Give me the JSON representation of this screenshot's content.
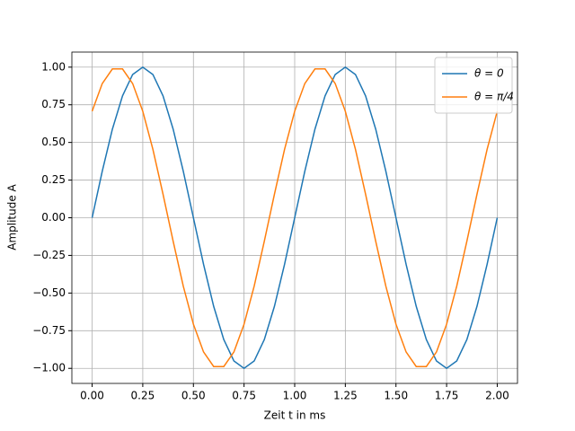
{
  "chart_data": {
    "type": "line",
    "xlabel": "Zeit t in ms",
    "ylabel": "Amplitude A",
    "x": [
      0,
      0.05,
      0.1,
      0.15,
      0.2,
      0.25,
      0.3,
      0.35,
      0.4,
      0.45,
      0.5,
      0.55,
      0.6,
      0.65,
      0.7,
      0.75,
      0.8,
      0.85,
      0.9,
      0.95,
      1.0,
      1.05,
      1.1,
      1.15,
      1.2,
      1.25,
      1.3,
      1.35,
      1.4,
      1.45,
      1.5,
      1.55,
      1.6,
      1.65,
      1.7,
      1.75,
      1.8,
      1.85,
      1.9,
      1.95,
      2.0
    ],
    "series": [
      {
        "name": "θ = 0",
        "color": "#1f77b4",
        "values": [
          0,
          0.309,
          0.588,
          0.809,
          0.951,
          1,
          0.951,
          0.809,
          0.588,
          0.309,
          0,
          -0.309,
          -0.588,
          -0.809,
          -0.951,
          -1,
          -0.951,
          -0.809,
          -0.588,
          -0.309,
          0,
          0.309,
          0.588,
          0.809,
          0.951,
          1,
          0.951,
          0.809,
          0.588,
          0.309,
          0,
          -0.309,
          -0.588,
          -0.809,
          -0.951,
          -1,
          -0.951,
          -0.809,
          -0.588,
          -0.309,
          0
        ]
      },
      {
        "name": "θ = π/4",
        "color": "#ff7f0e",
        "values": [
          0.707,
          0.891,
          0.988,
          0.988,
          0.891,
          0.707,
          0.454,
          0.156,
          -0.156,
          -0.454,
          -0.707,
          -0.891,
          -0.988,
          -0.988,
          -0.891,
          -0.707,
          -0.454,
          -0.156,
          0.156,
          0.454,
          0.707,
          0.891,
          0.988,
          0.988,
          0.891,
          0.707,
          0.454,
          0.156,
          -0.156,
          -0.454,
          -0.707,
          -0.891,
          -0.988,
          -0.988,
          -0.891,
          -0.707,
          -0.454,
          -0.156,
          0.156,
          0.454,
          0.707
        ]
      }
    ],
    "xlim": [
      -0.1,
      2.1
    ],
    "ylim": [
      -1.1,
      1.1
    ],
    "xticks": [
      {
        "value": 0,
        "label": "0.00"
      },
      {
        "value": 0.25,
        "label": "0.25"
      },
      {
        "value": 0.5,
        "label": "0.50"
      },
      {
        "value": 0.75,
        "label": "0.75"
      },
      {
        "value": 1.0,
        "label": "1.00"
      },
      {
        "value": 1.25,
        "label": "1.25"
      },
      {
        "value": 1.5,
        "label": "1.50"
      },
      {
        "value": 1.75,
        "label": "1.75"
      },
      {
        "value": 2.0,
        "label": "2.00"
      }
    ],
    "yticks": [
      {
        "value": -1,
        "label": "−1.00"
      },
      {
        "value": -0.75,
        "label": "−0.75"
      },
      {
        "value": -0.5,
        "label": "−0.50"
      },
      {
        "value": -0.25,
        "label": "−0.25"
      },
      {
        "value": 0,
        "label": "0.00"
      },
      {
        "value": 0.25,
        "label": "0.25"
      },
      {
        "value": 0.5,
        "label": "0.50"
      },
      {
        "value": 0.75,
        "label": "0.75"
      },
      {
        "value": 1.0,
        "label": "1.00"
      }
    ],
    "grid": true,
    "legend": "upper right"
  }
}
